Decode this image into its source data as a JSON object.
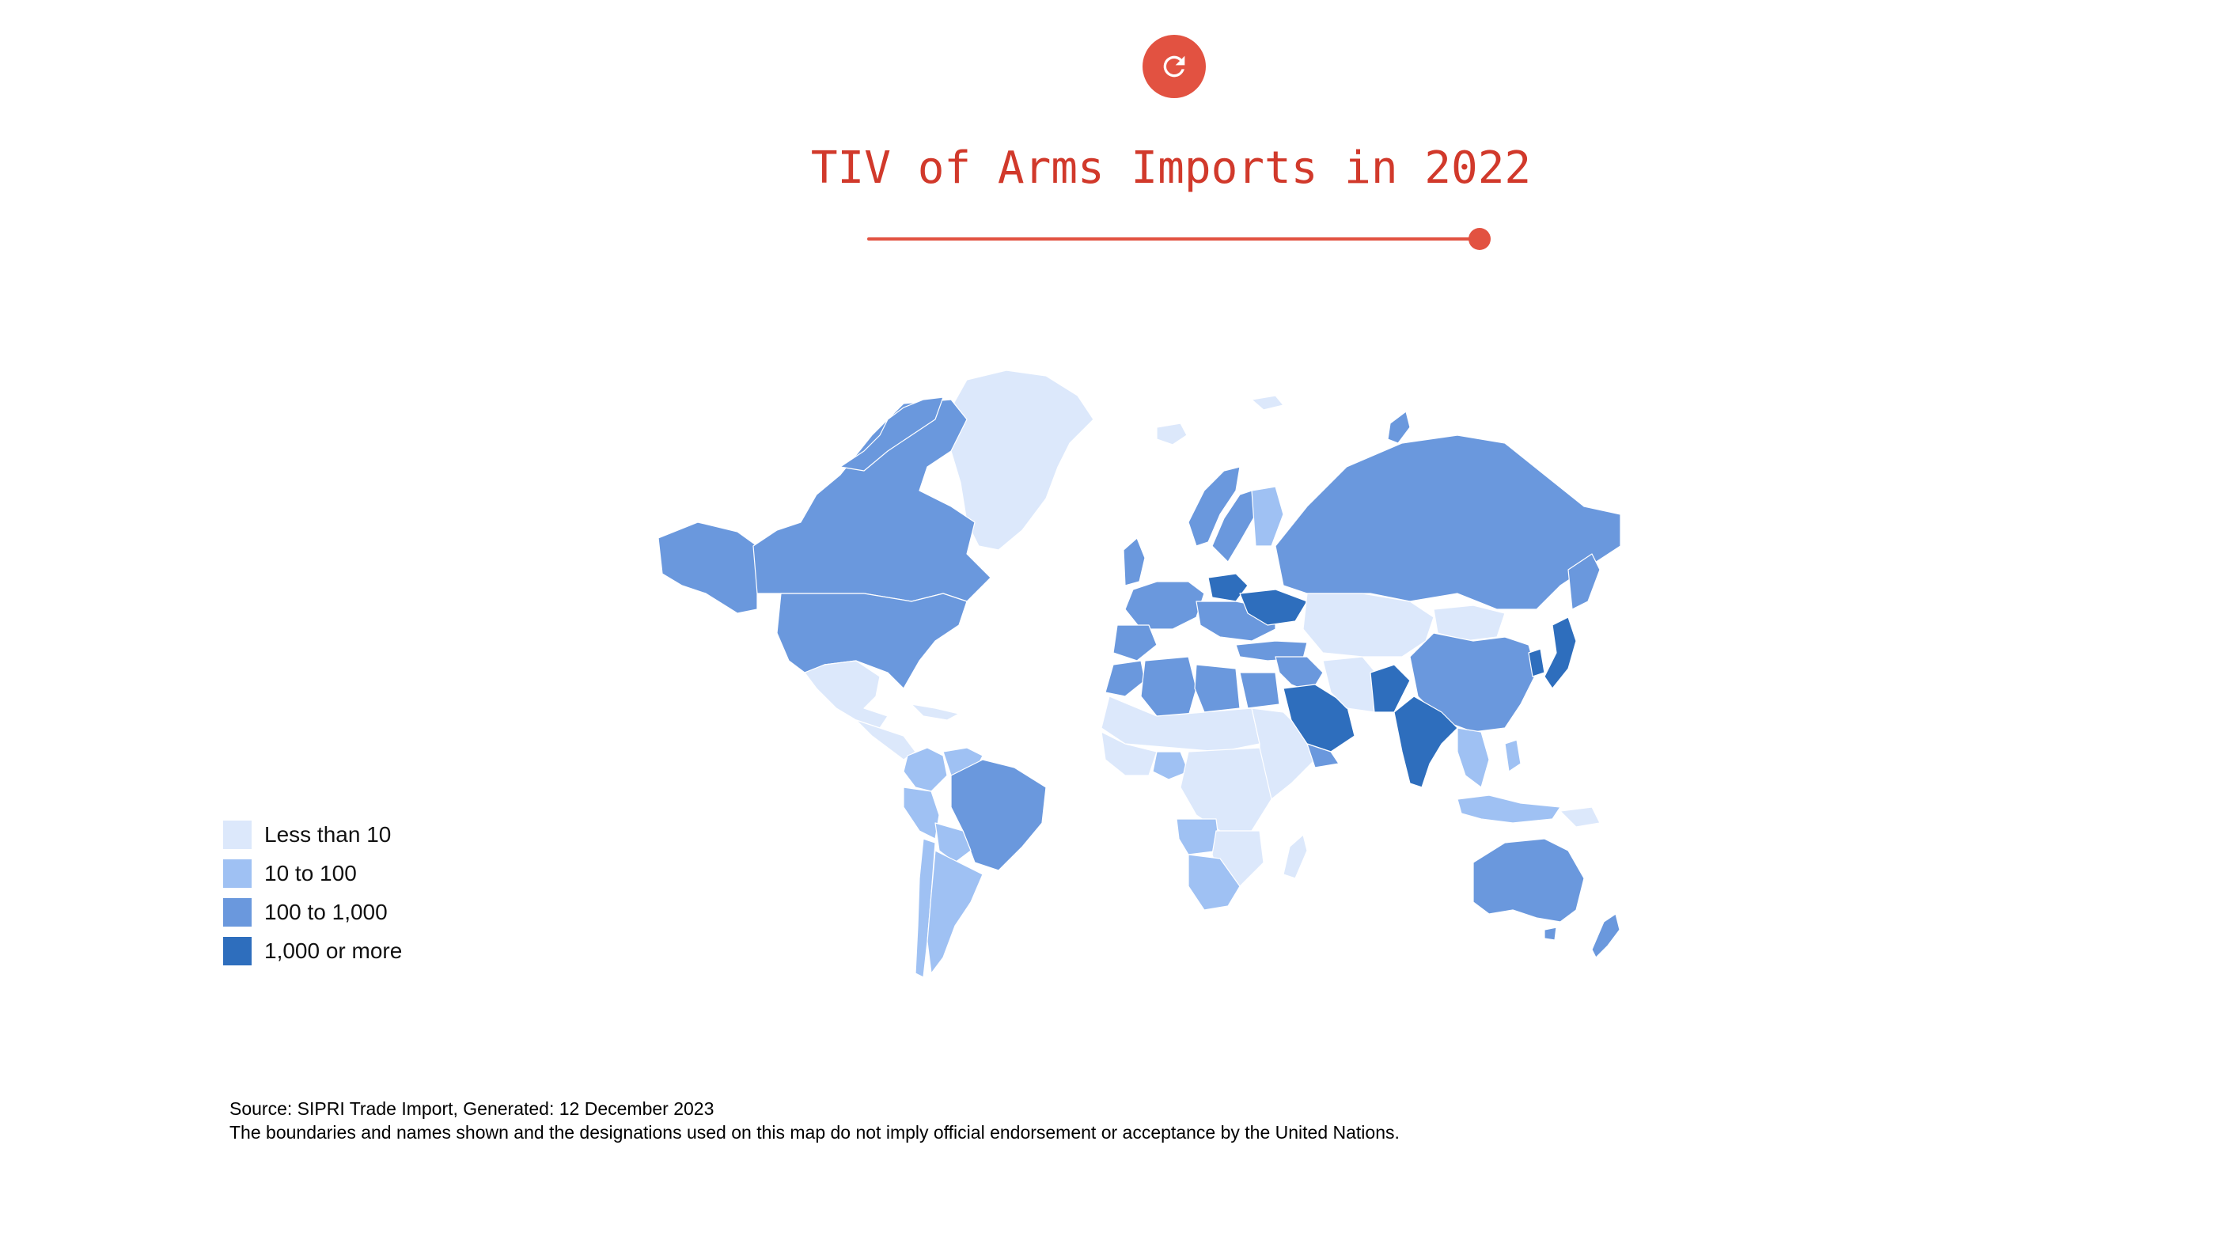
{
  "header": {
    "title": "TIV of Arms Imports in 2022",
    "accent_color": "#e25241",
    "title_color": "#d1392b",
    "reload_icon": "reload-icon"
  },
  "timeline": {
    "value_label": "2022",
    "position_fraction": 1.0
  },
  "legend": {
    "items": [
      {
        "label": "Less than 10",
        "color": "#dce8fb"
      },
      {
        "label": "10 to 100",
        "color": "#9fc1f3"
      },
      {
        "label": "100 to 1,000",
        "color": "#6a98dd"
      },
      {
        "label": "1,000 or more",
        "color": "#2e6ebd"
      }
    ]
  },
  "footnote": {
    "source": "Source: SIPRI Trade Import, Generated: 12 December 2023",
    "disclaimer": "The boundaries and names shown and the designations used on this map do not imply official endorsement or acceptance by the United Nations."
  },
  "map_data": {
    "classes": {
      "greenland": 0,
      "alaska": 2,
      "canada": 2,
      "usa": 2,
      "mexico": 0,
      "central_america": 0,
      "colombia": 1,
      "venezuela": 1,
      "brazil": 2,
      "peru": 1,
      "bolivia": 1,
      "chile": 1,
      "argentina": 1,
      "iceland": 0,
      "norway": 2,
      "sweden": 2,
      "finland": 1,
      "uk": 2,
      "western_europe": 2,
      "eastern_europe": 2,
      "ukraine": 3,
      "poland": 3,
      "turkey": 2,
      "russia": 2,
      "morocco": 2,
      "algeria": 2,
      "egypt": 2,
      "sahel": 0,
      "west_africa": 0,
      "nigeria": 1,
      "central_africa": 0,
      "east_africa": 0,
      "southern_africa": 0,
      "angola": 1,
      "south_africa": 1,
      "madagascar": 0,
      "saudi_arabia": 3,
      "middle_east": 2,
      "iran": 0,
      "central_asia": 0,
      "mongolia": 0,
      "china": 2,
      "india": 3,
      "pakistan": 3,
      "southeast_asia": 1,
      "philippines": 1,
      "indonesia": 1,
      "japan": 3,
      "korea": 3,
      "australia": 2,
      "new_zealand": 2,
      "papua": 0,
      "svalbard": 0
    }
  }
}
